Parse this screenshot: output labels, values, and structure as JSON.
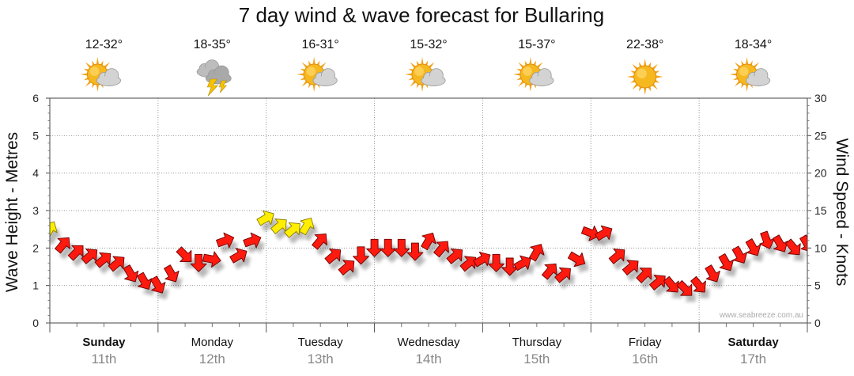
{
  "chart_data": {
    "type": "line",
    "title": "7 day wind & wave forecast for Bullaring",
    "ylabel_left": "Wave Height - Metres",
    "ylabel_right": "Wind Speed - Knots",
    "ylim_left": [
      0,
      6
    ],
    "ylim_right": [
      0,
      30
    ],
    "yticks_left": [
      "0",
      "1",
      "2",
      "3",
      "4",
      "5",
      "6"
    ],
    "yticks_right": [
      "0",
      "5",
      "10",
      "15",
      "20",
      "25",
      "30"
    ],
    "grid": true,
    "watermark": "www.seabreeze.com.au",
    "days": [
      {
        "name": "Sunday",
        "date": "11th",
        "temp": "12-32°",
        "icon": "partly-cloudy-icon",
        "bold": true
      },
      {
        "name": "Monday",
        "date": "12th",
        "temp": "18-35°",
        "icon": "thunderstorm-icon",
        "bold": false
      },
      {
        "name": "Tuesday",
        "date": "13th",
        "temp": "16-31°",
        "icon": "partly-cloudy-icon",
        "bold": false
      },
      {
        "name": "Wednesday",
        "date": "14th",
        "temp": "15-32°",
        "icon": "partly-cloudy-icon",
        "bold": false
      },
      {
        "name": "Thursday",
        "date": "15th",
        "temp": "15-37°",
        "icon": "partly-cloudy-icon",
        "bold": false
      },
      {
        "name": "Friday",
        "date": "16th",
        "temp": "22-38°",
        "icon": "sunny-icon",
        "bold": false
      },
      {
        "name": "Saturday",
        "date": "17th",
        "temp": "18-34°",
        "icon": "partly-cloudy-icon",
        "bold": true
      }
    ],
    "wind_series": {
      "name": "Wind",
      "unit": "knots",
      "hours": [
        0,
        3,
        6,
        9,
        12,
        15,
        18,
        21,
        24,
        27,
        30,
        33,
        36,
        39,
        42,
        45,
        48,
        51,
        54,
        57,
        60,
        63,
        66,
        69,
        72,
        75,
        78,
        81,
        84,
        87,
        90,
        93,
        96,
        99,
        102,
        105,
        108,
        111,
        114,
        117,
        120,
        123,
        126,
        129,
        132,
        135,
        138,
        141,
        144,
        147,
        150,
        153,
        156,
        159,
        162,
        165,
        168
      ],
      "values": [
        12.5,
        10.5,
        9.5,
        9,
        8.5,
        8,
        6.5,
        5.5,
        5,
        6.5,
        9,
        8,
        8.5,
        11,
        9,
        11,
        14,
        13,
        12.5,
        13,
        11,
        9,
        7.5,
        9,
        10,
        10,
        10,
        9.5,
        11,
        10,
        9,
        8,
        8.5,
        8,
        7.5,
        8,
        9.5,
        7,
        6.5,
        8.5,
        12,
        12,
        9,
        7.5,
        6.5,
        5.5,
        5,
        4.5,
        5,
        6.5,
        8,
        9,
        10,
        11,
        10.5,
        10,
        10.5
      ],
      "direction_deg": [
        300,
        310,
        315,
        320,
        320,
        320,
        60,
        60,
        60,
        60,
        45,
        90,
        10,
        340,
        330,
        340,
        330,
        320,
        320,
        300,
        310,
        320,
        320,
        90,
        90,
        90,
        90,
        90,
        300,
        310,
        320,
        320,
        330,
        90,
        90,
        330,
        300,
        310,
        320,
        30,
        20,
        330,
        320,
        320,
        315,
        320,
        50,
        45,
        50,
        60,
        60,
        60,
        60,
        70,
        60,
        50,
        60
      ],
      "strong_threshold": 12.5
    }
  }
}
